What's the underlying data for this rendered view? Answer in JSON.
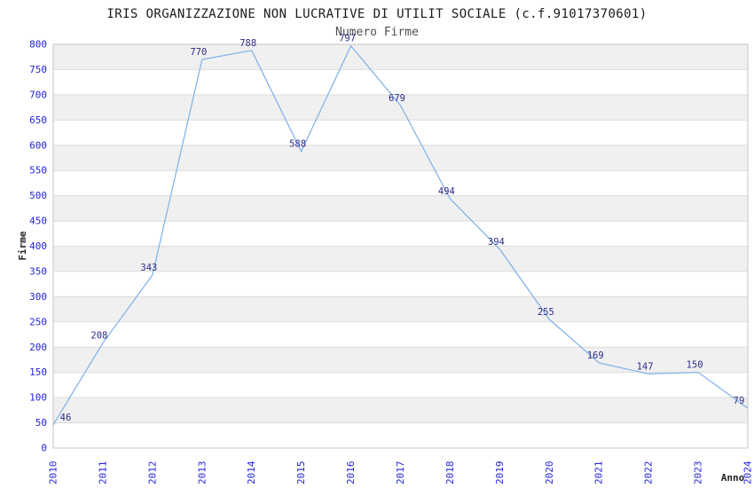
{
  "chart_data": {
    "type": "line",
    "title": "IRIS ORGANIZZAZIONE NON LUCRATIVE DI UTILIT SOCIALE (c.f.91017370601)",
    "subtitle": "Numero Firme",
    "xlabel": "Anno",
    "ylabel": "Firme",
    "categories": [
      "2010",
      "2011",
      "2012",
      "2013",
      "2014",
      "2015",
      "2016",
      "2017",
      "2018",
      "2019",
      "2020",
      "2021",
      "2022",
      "2023",
      "2024"
    ],
    "values": [
      46,
      208,
      343,
      770,
      788,
      588,
      797,
      679,
      494,
      394,
      255,
      169,
      147,
      150,
      79
    ],
    "ylim": [
      0,
      800
    ],
    "ytick_step": 50,
    "grid": true,
    "legend_position": "none",
    "x_tick_rotation_degrees": 90,
    "colors": {
      "line": "#7db0e8",
      "point_label": "#2d2d8a",
      "tick_label": "#2222dd",
      "axis_title": "#222222",
      "title": "#1a1a1a",
      "subtitle": "#4f4f4f",
      "band_light": "#ffffff",
      "band_dark": "#f0f0f0",
      "gridline": "#dcdcdc",
      "border": "#c6c6c6",
      "background": "#ffffff"
    }
  }
}
